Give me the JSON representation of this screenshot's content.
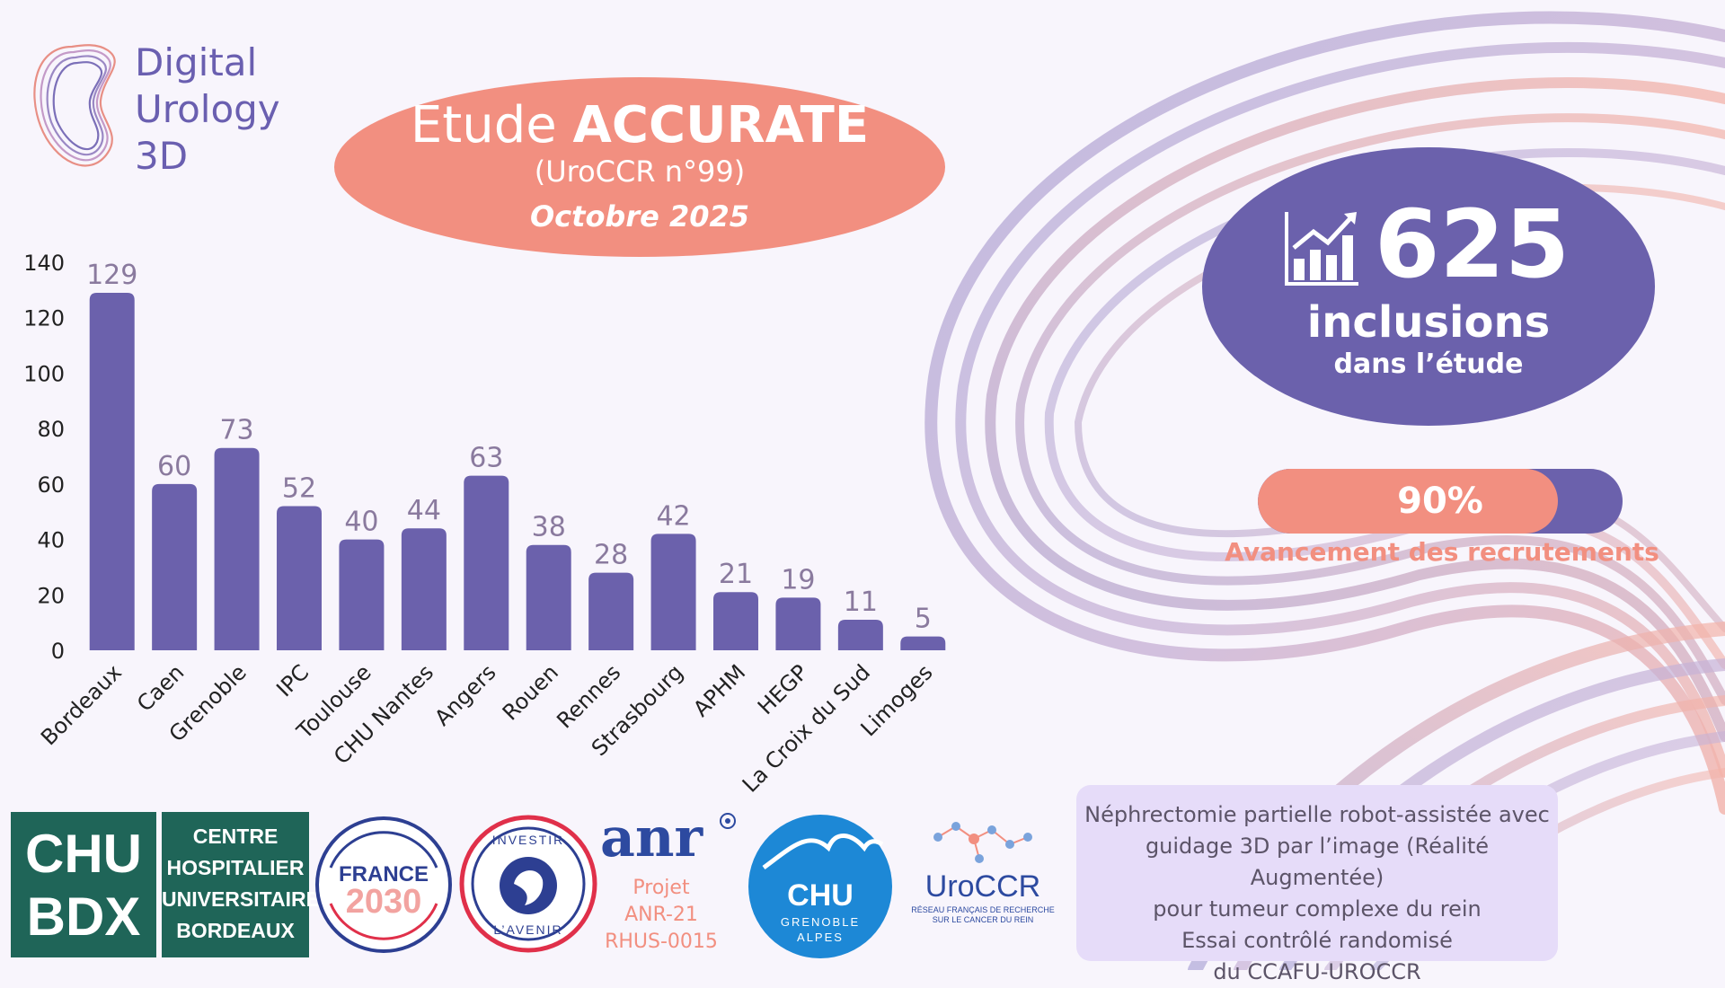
{
  "brand": {
    "line1": "Digital",
    "line2": "Urology",
    "line3": "3D"
  },
  "title": {
    "prefix": "Etude",
    "name": "ACCURATE",
    "subtitle": "(UroCCR n°99)",
    "date": "Octobre 2025"
  },
  "colors": {
    "purple": "#6b61ac",
    "salmon": "#f28f80",
    "background": "#f8f5fc",
    "text_value": "#8a7a9e",
    "box": "#e6dcf9"
  },
  "chart_data": {
    "type": "bar",
    "categories": [
      "Bordeaux",
      "Caen",
      "Grenoble",
      "IPC",
      "Toulouse",
      "CHU Nantes",
      "Angers",
      "Rouen",
      "Rennes",
      "Strasbourg",
      "APHM",
      "HEGP",
      "La Croix du Sud",
      "Limoges"
    ],
    "values": [
      129,
      60,
      73,
      52,
      40,
      44,
      63,
      38,
      28,
      42,
      21,
      19,
      11,
      5
    ],
    "ylim": [
      0,
      140
    ],
    "yticks": [
      0,
      20,
      40,
      60,
      80,
      100,
      120,
      140
    ],
    "grid": false,
    "bar_color": "#6b61ac"
  },
  "inclusions": {
    "icon": "chart-trend-icon",
    "number": "625",
    "label": "inclusions",
    "sublabel": "dans l’étude"
  },
  "progress": {
    "value": 0.9,
    "label": "90%",
    "caption": "Avancement des recrutements"
  },
  "logos": {
    "chu_bdx": {
      "line1": "CHU",
      "line2": "BDX"
    },
    "chu_bdx_name": [
      "CENTRE",
      "HOSPITALIER",
      "UNIVERSITAIRE",
      "BORDEAUX"
    ],
    "france2030": {
      "word": "FRANCE",
      "year": "2030"
    },
    "investir": {
      "top": "INVESTIR",
      "bottom": "L’AVENIR"
    },
    "anr": {
      "name": "anr",
      "project": [
        "Projet",
        "ANR-21",
        "RHUS-0015"
      ]
    },
    "chu_grenoble": {
      "name": "CHU",
      "line1": "GRENOBLE",
      "line2": "ALPES"
    },
    "uroccr": {
      "name": "UroCCR",
      "line1": "RÉSEAU FRANÇAIS DE RECHERCHE",
      "line2": "SUR LE CANCER DU REIN"
    }
  },
  "description": [
    "Néphrectomie partielle robot-assistée avec",
    "guidage 3D par l’image (Réalité Augmentée)",
    "pour tumeur complexe du rein",
    "Essai contrôlé randomisé",
    "du CCAFU-UROCCR"
  ]
}
